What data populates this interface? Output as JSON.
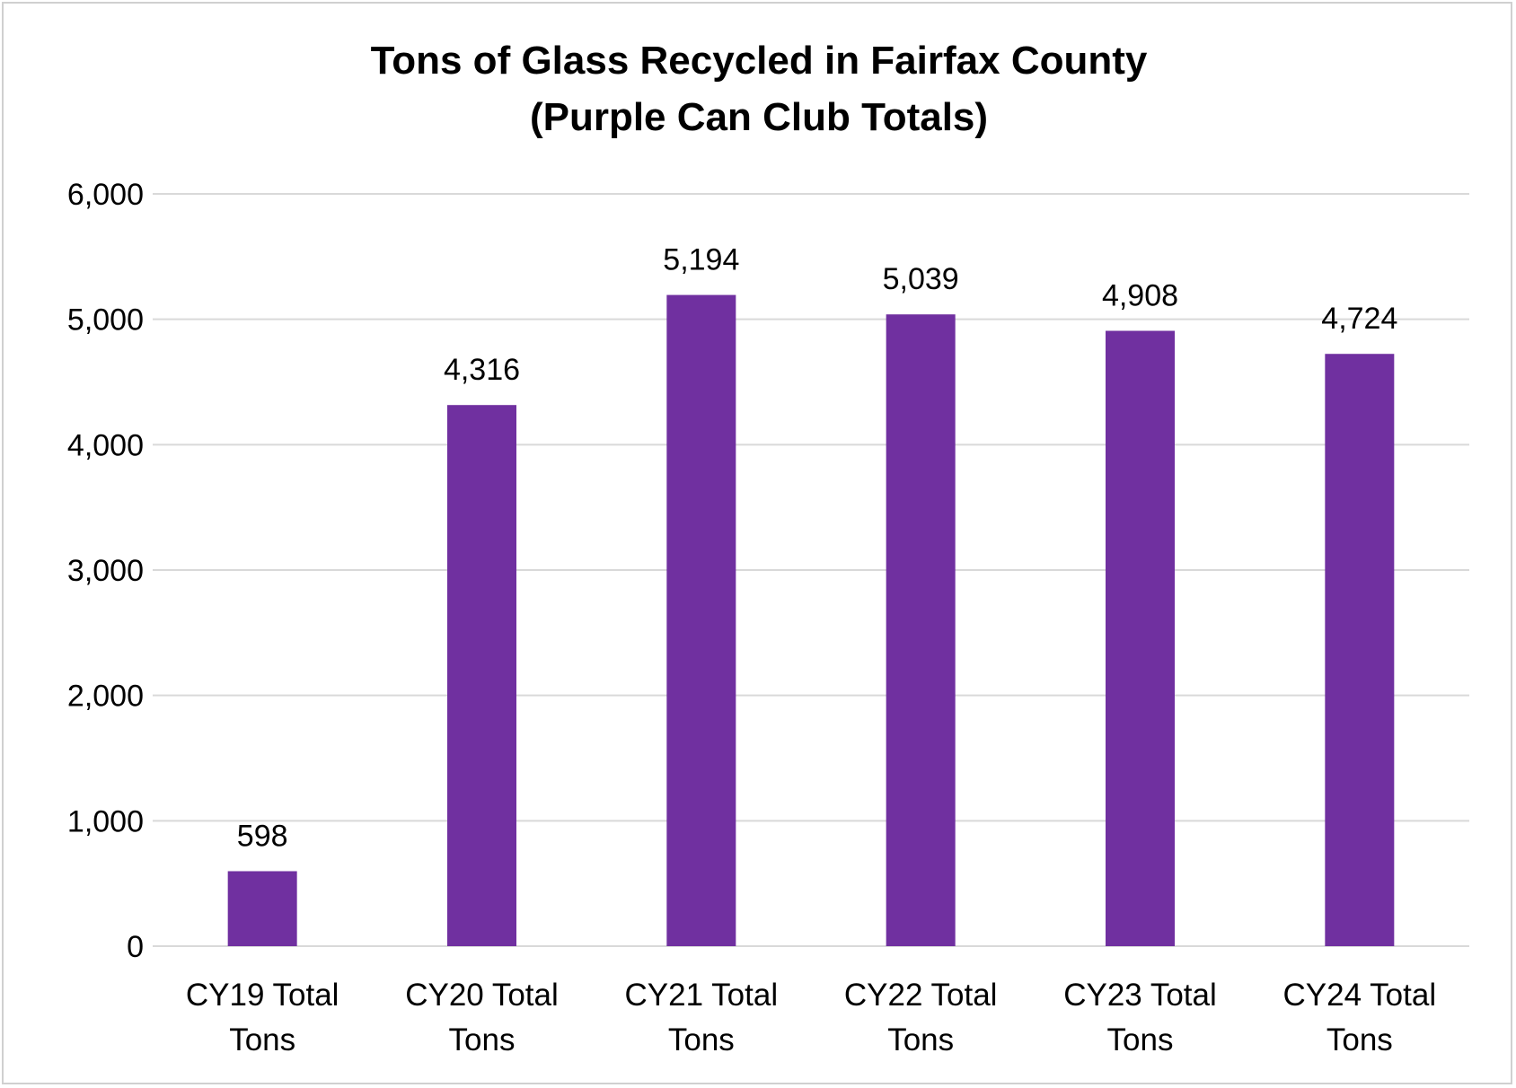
{
  "chart_data": {
    "type": "bar",
    "title": "Tons of Glass Recycled in Fairfax County",
    "subtitle": "(Purple Can Club Totals)",
    "xlabel": "",
    "ylabel": "",
    "categories": [
      [
        "CY19 Total",
        "Tons"
      ],
      [
        "CY20 Total",
        "Tons"
      ],
      [
        "CY21 Total",
        "Tons"
      ],
      [
        "CY22 Total",
        "Tons"
      ],
      [
        "CY23 Total",
        "Tons"
      ],
      [
        "CY24 Total",
        "Tons"
      ]
    ],
    "values": [
      598,
      4316,
      5194,
      5039,
      4908,
      4724
    ],
    "data_labels": [
      "598",
      "4,316",
      "5,194",
      "5,039",
      "4,908",
      "4,724"
    ],
    "ylim": [
      0,
      6000
    ],
    "yticks": [
      0,
      1000,
      2000,
      3000,
      4000,
      5000,
      6000
    ],
    "ytick_labels": [
      "0",
      "1,000",
      "2,000",
      "3,000",
      "4,000",
      "5,000",
      "6,000"
    ],
    "grid": true,
    "legend": "none",
    "colors": {
      "bar": "#7030A0",
      "grid": "#d9d9d9",
      "frame": "#d0d0d0"
    }
  }
}
